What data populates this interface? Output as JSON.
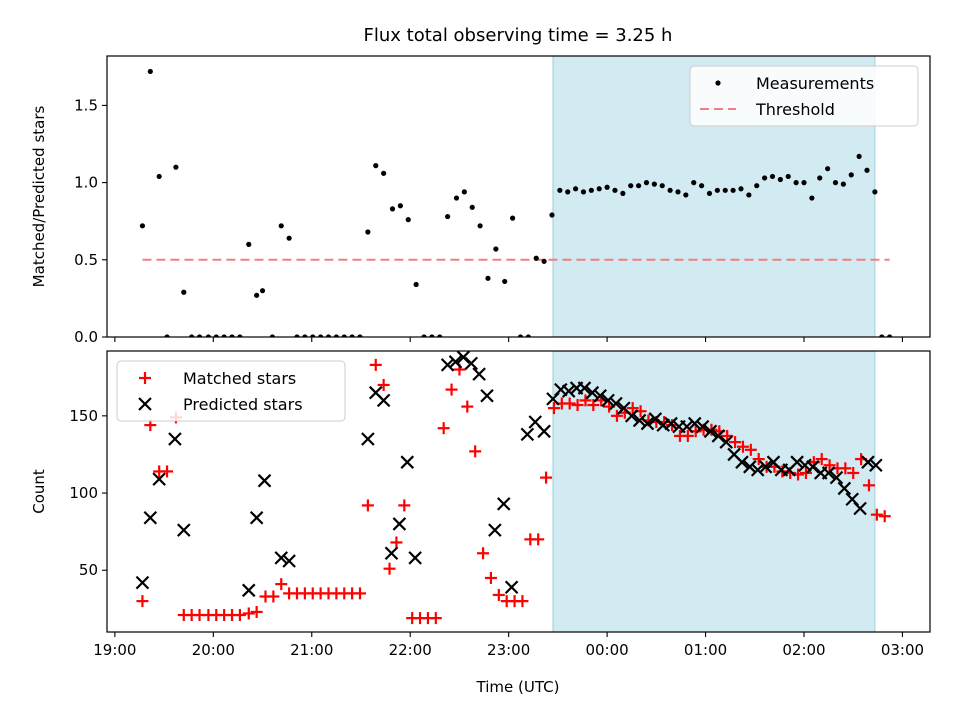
{
  "chart_data": {
    "title": "Flux total observing time = 3.25 h",
    "xlabel": "Time (UTC)",
    "x_unit": "hours since 19:00",
    "xlim": [
      -0.08,
      8.28
    ],
    "xticks": [
      {
        "v": 0,
        "label": "19:00"
      },
      {
        "v": 1,
        "label": "20:00"
      },
      {
        "v": 2,
        "label": "21:00"
      },
      {
        "v": 3,
        "label": "22:00"
      },
      {
        "v": 4,
        "label": "23:00"
      },
      {
        "v": 5,
        "label": "00:00"
      },
      {
        "v": 6,
        "label": "01:00"
      },
      {
        "v": 7,
        "label": "02:00"
      },
      {
        "v": 8,
        "label": "03:00"
      }
    ],
    "highlight_span": [
      4.45,
      7.72
    ],
    "highlight_color": "#add8e6",
    "panels": [
      {
        "type": "scatter",
        "ylabel": "Matched/Predicted stars",
        "ylim": [
          0,
          1.82
        ],
        "yticks": [
          {
            "v": 0,
            "label": "0.0"
          },
          {
            "v": 0.5,
            "label": "0.5"
          },
          {
            "v": 1.0,
            "label": "1.0"
          },
          {
            "v": 1.5,
            "label": "1.5"
          }
        ],
        "legend": {
          "position": "upper right",
          "entries": [
            "Measurements",
            "Threshold"
          ]
        },
        "threshold": {
          "name": "Threshold",
          "value": 0.5,
          "x": [
            0.28,
            7.87
          ],
          "color": "#f08080"
        },
        "series": [
          {
            "name": "Measurements",
            "marker": "dot",
            "color": "#000000",
            "x": [
              0.28,
              0.36,
              0.45,
              0.53,
              0.62,
              0.7,
              0.78,
              0.86,
              0.95,
              1.03,
              1.11,
              1.19,
              1.27,
              1.36,
              1.44,
              1.5,
              1.6,
              1.69,
              1.77,
              1.85,
              1.93,
              2.01,
              2.09,
              2.17,
              2.25,
              2.33,
              2.41,
              2.49,
              2.57,
              2.65,
              2.73,
              2.82,
              2.9,
              2.98,
              3.06,
              3.14,
              3.22,
              3.3,
              3.38,
              3.47,
              3.55,
              3.63,
              3.71,
              3.79,
              3.87,
              3.96,
              4.04,
              4.12,
              4.2,
              4.28,
              4.36,
              4.44,
              4.52,
              4.6,
              4.68,
              4.76,
              4.84,
              4.92,
              5.0,
              5.08,
              5.16,
              5.24,
              5.32,
              5.4,
              5.48,
              5.56,
              5.64,
              5.72,
              5.8,
              5.88,
              5.96,
              6.04,
              6.12,
              6.2,
              6.28,
              6.36,
              6.44,
              6.52,
              6.6,
              6.68,
              6.76,
              6.84,
              6.92,
              7.0,
              7.08,
              7.16,
              7.24,
              7.32,
              7.4,
              7.48,
              7.56,
              7.64,
              7.72,
              7.79,
              7.87
            ],
            "y": [
              0.72,
              1.72,
              1.04,
              0.0,
              1.1,
              0.29,
              0.0,
              0.0,
              0.0,
              0.0,
              0.0,
              0.0,
              0.0,
              0.6,
              0.27,
              0.3,
              0.0,
              0.72,
              0.64,
              0.0,
              0.0,
              0.0,
              0.0,
              0.0,
              0.0,
              0.0,
              0.0,
              0.0,
              0.68,
              1.11,
              1.06,
              0.83,
              0.85,
              0.76,
              0.34,
              0.0,
              0.0,
              0.0,
              0.78,
              0.9,
              0.94,
              0.84,
              0.72,
              0.38,
              0.57,
              0.36,
              0.77,
              0.0,
              0.0,
              0.51,
              0.49,
              0.79,
              0.95,
              0.94,
              0.96,
              0.94,
              0.95,
              0.96,
              0.97,
              0.95,
              0.93,
              0.98,
              0.98,
              1.0,
              0.99,
              0.98,
              0.95,
              0.94,
              0.92,
              1.0,
              0.98,
              0.93,
              0.95,
              0.95,
              0.95,
              0.96,
              0.92,
              0.98,
              1.03,
              1.04,
              1.02,
              1.04,
              1.0,
              1.0,
              0.9,
              1.03,
              1.09,
              1.0,
              0.99,
              1.05,
              1.17,
              1.08,
              0.94,
              0.0,
              0.0
            ]
          }
        ]
      },
      {
        "type": "scatter",
        "ylabel": "Count",
        "ylim": [
          10,
          192
        ],
        "yticks": [
          {
            "v": 50,
            "label": "50"
          },
          {
            "v": 100,
            "label": "100"
          },
          {
            "v": 150,
            "label": "150"
          }
        ],
        "legend": {
          "position": "upper left",
          "entries": [
            "Matched stars",
            "Predicted stars"
          ]
        },
        "series": [
          {
            "name": "Matched stars",
            "marker": "plus",
            "color": "#ff0000",
            "x": [
              0.28,
              0.36,
              0.45,
              0.53,
              0.62,
              0.7,
              0.78,
              0.86,
              0.95,
              1.03,
              1.11,
              1.19,
              1.27,
              1.36,
              1.44,
              1.53,
              1.61,
              1.69,
              1.77,
              1.85,
              1.93,
              2.01,
              2.09,
              2.17,
              2.25,
              2.33,
              2.41,
              2.49,
              2.57,
              2.65,
              2.73,
              2.79,
              2.86,
              2.94,
              3.02,
              3.1,
              3.18,
              3.26,
              3.34,
              3.42,
              3.5,
              3.58,
              3.66,
              3.74,
              3.82,
              3.9,
              3.98,
              4.06,
              4.14,
              4.22,
              4.3,
              4.38,
              4.46,
              4.54,
              4.62,
              4.7,
              4.78,
              4.86,
              4.94,
              5.02,
              5.1,
              5.18,
              5.26,
              5.34,
              5.42,
              5.5,
              5.58,
              5.66,
              5.74,
              5.82,
              5.9,
              5.98,
              6.06,
              6.14,
              6.22,
              6.3,
              6.38,
              6.46,
              6.54,
              6.62,
              6.7,
              6.78,
              6.86,
              6.94,
              7.02,
              7.1,
              7.18,
              7.26,
              7.34,
              7.42,
              7.5,
              7.58,
              7.66,
              7.74,
              7.82
            ],
            "y": [
              30,
              144,
              114,
              114,
              149,
              21,
              21,
              21,
              21,
              21,
              21,
              21,
              21,
              22,
              23,
              33,
              33,
              41,
              35,
              35,
              35,
              35,
              35,
              35,
              35,
              35,
              35,
              35,
              92,
              183,
              170,
              51,
              68,
              92,
              19,
              19,
              19,
              19,
              142,
              167,
              180,
              156,
              127,
              61,
              45,
              34,
              30,
              30,
              30,
              70,
              70,
              110,
              155,
              158,
              158,
              157,
              160,
              157,
              160,
              156,
              150,
              152,
              155,
              153,
              147,
              146,
              146,
              144,
              137,
              137,
              140,
              141,
              141,
              140,
              137,
              133,
              130,
              128,
              122,
              117,
              117,
              114,
              113,
              112,
              113,
              120,
              122,
              118,
              116,
              116,
              113,
              122,
              105,
              86,
              85
            ]
          },
          {
            "name": "Predicted stars",
            "marker": "x",
            "color": "#000000",
            "x": [
              0.28,
              0.36,
              0.45,
              0.61,
              0.7,
              1.36,
              1.44,
              1.52,
              1.69,
              1.77,
              2.57,
              2.65,
              2.73,
              2.81,
              2.89,
              2.97,
              3.05,
              3.38,
              3.46,
              3.54,
              3.62,
              3.7,
              3.78,
              3.86,
              3.95,
              4.03,
              4.19,
              4.27,
              4.36,
              4.45,
              4.53,
              4.61,
              4.69,
              4.77,
              4.85,
              4.93,
              5.01,
              5.09,
              5.17,
              5.25,
              5.33,
              5.41,
              5.49,
              5.57,
              5.65,
              5.73,
              5.81,
              5.89,
              5.97,
              6.05,
              6.13,
              6.21,
              6.29,
              6.37,
              6.45,
              6.53,
              6.61,
              6.69,
              6.77,
              6.85,
              6.93,
              7.01,
              7.09,
              7.17,
              7.25,
              7.33,
              7.41,
              7.49,
              7.57,
              7.65,
              7.73
            ],
            "y": [
              42,
              84,
              109,
              135,
              76,
              37,
              84,
              108,
              58,
              56,
              135,
              165,
              160,
              61,
              80,
              120,
              58,
              183,
              185,
              188,
              184,
              177,
              163,
              76,
              93,
              39,
              138,
              146,
              140,
              161,
              167,
              166,
              168,
              168,
              165,
              163,
              160,
              158,
              155,
              150,
              147,
              145,
              148,
              144,
              145,
              143,
              143,
              145,
              143,
              140,
              137,
              133,
              125,
              120,
              117,
              115,
              117,
              120,
              115,
              115,
              120,
              118,
              117,
              113,
              113,
              110,
              103,
              96,
              90,
              120,
              118
            ]
          }
        ]
      }
    ]
  }
}
